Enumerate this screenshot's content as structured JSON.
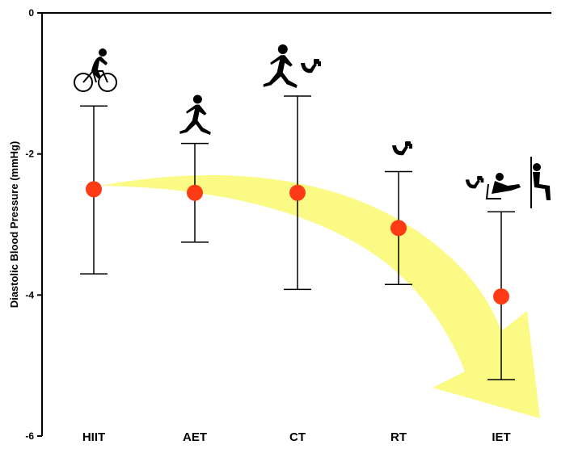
{
  "chart_data": {
    "type": "scatter",
    "ylabel": "Diastolic Blood Pressure (mmHg)",
    "xlabel": "",
    "ylim": [
      -6,
      0
    ],
    "yticks": [
      "0",
      "-2",
      "-4",
      "-6"
    ],
    "yticks_values": [
      0,
      -2,
      -4,
      -6
    ],
    "categories": [
      "HIIT",
      "AET",
      "CT",
      "RT",
      "IET"
    ],
    "values": [
      -2.5,
      -2.55,
      -2.55,
      -3.05,
      -4.02
    ],
    "error_low": [
      -3.7,
      -3.25,
      -3.92,
      -3.85,
      -5.2
    ],
    "error_high": [
      -1.32,
      -1.85,
      -1.18,
      -2.25,
      -2.82
    ],
    "marker_color": "#ff3b16",
    "arrow_color": "#fafa78",
    "icons": [
      "cyclist-icon",
      "runner-icon",
      "runner-and-weights-icon",
      "resistance-weights-icon",
      "isometric-exercise-icon"
    ]
  }
}
